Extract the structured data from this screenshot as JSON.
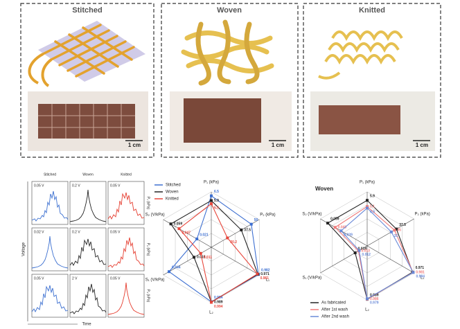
{
  "panels": [
    {
      "title": "Stitched",
      "scale_bar": "1 cm"
    },
    {
      "title": "Woven",
      "scale_bar": "1 cm"
    },
    {
      "title": "Knitted",
      "scale_bar": "1 cm"
    }
  ],
  "waveforms": {
    "columns": [
      "Stitched",
      "Woven",
      "Knitted"
    ],
    "y_label": "Voltage",
    "x_label": "Time",
    "row_labels": [
      "P₁ (kPa)",
      "P₂ (kPa)",
      "P₃ (kPa)"
    ],
    "cell_labels": [
      [
        "0.05 V",
        "0.2 V",
        "0.05 V"
      ],
      [
        "0.02 V",
        "0.2 V",
        "0.05 V"
      ],
      [
        "0.05 V",
        "2 V",
        "0.05 V"
      ]
    ]
  },
  "chart_data": [
    {
      "type": "radar",
      "legend": "upper left",
      "axes": [
        {
          "label": "P₁ (kPa)",
          "lim": [
            0,
            7
          ]
        },
        {
          "label": "P₂ (kPa)",
          "lim": [
            0,
            60
          ]
        },
        {
          "label": "L₁",
          "lim": [
            0,
            1
          ]
        },
        {
          "label": "L₂",
          "lim": [
            0,
            1
          ]
        },
        {
          "label": "S₁ (V/kPa)",
          "lim": [
            0,
            0.05
          ]
        },
        {
          "label": "S₂ (V/kPa)",
          "lim": [
            0,
            0.07
          ]
        }
      ],
      "series": [
        {
          "name": "Stitched",
          "color": "#3d6fd1",
          "values": [
            6.5,
            50,
            0.982,
            0.984,
            0.044,
            0.021
          ]
        },
        {
          "name": "Woven",
          "color": "#222222",
          "values": [
            5.9,
            37.5,
            0.971,
            0.989,
            0.018,
            0.059
          ]
        },
        {
          "name": "Knitted",
          "color": "#e8473c",
          "values": [
            5.5,
            20.2,
            0.961,
            0.994,
            0.011,
            0.047
          ]
        }
      ]
    },
    {
      "type": "radar",
      "title": "Woven",
      "legend": "lower left",
      "axes": [
        {
          "label": "P₁ (kPa)",
          "lim": [
            0,
            7
          ]
        },
        {
          "label": "P₂ (kPa)",
          "lim": [
            0,
            60
          ]
        },
        {
          "label": "L₁",
          "lim": [
            0,
            1
          ]
        },
        {
          "label": "L₂",
          "lim": [
            0,
            1
          ]
        },
        {
          "label": "S₁ (V/kPa)",
          "lim": [
            0,
            0.07
          ]
        },
        {
          "label": "S₂ (V/kPa)",
          "lim": [
            0,
            0.07
          ]
        }
      ],
      "series": [
        {
          "name": "As fabricated",
          "color": "#222222",
          "values": [
            5.9,
            37.5,
            0.971,
            0.989,
            0.018,
            0.059
          ]
        },
        {
          "name": "After 1st wash",
          "color": "#f07a7a",
          "values": [
            5.1,
            35,
            0.981,
            0.986,
            0.013,
            0.048
          ]
        },
        {
          "name": "After 2nd wash",
          "color": "#6a8ad8",
          "values": [
            4.9,
            31,
            0.984,
            0.979,
            0.012,
            0.039
          ]
        }
      ]
    }
  ]
}
